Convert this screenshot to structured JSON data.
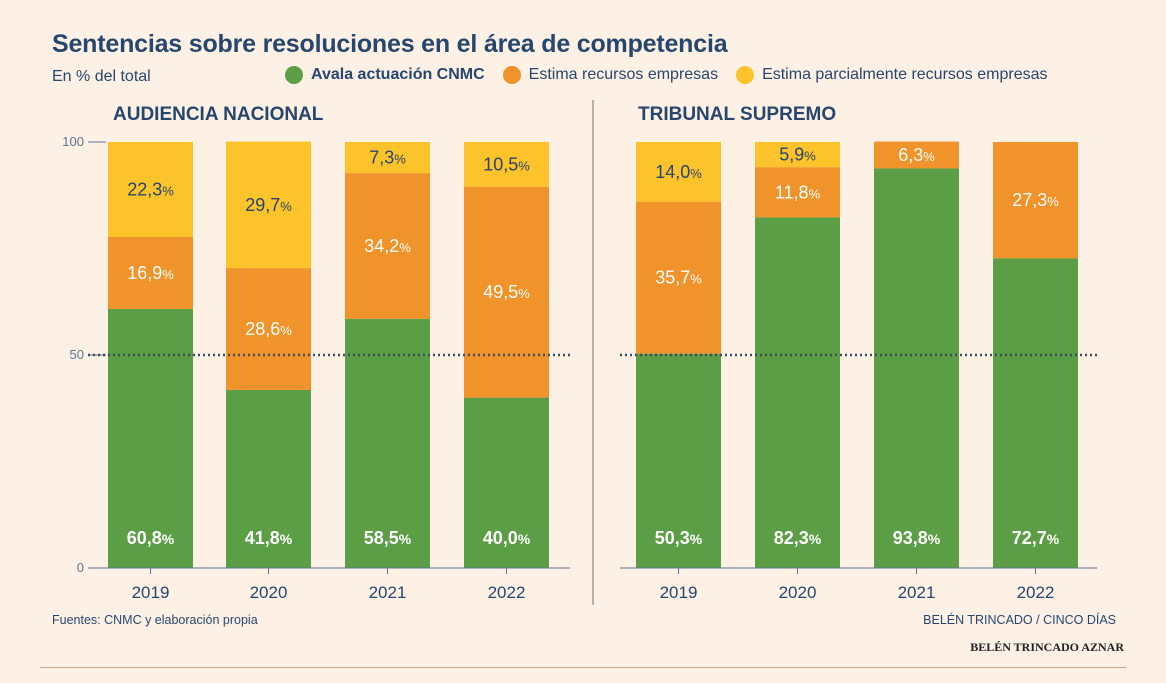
{
  "title": "Sentencias sobre resoluciones en el área de competencia",
  "subtitle": "En % del total",
  "legend": [
    {
      "label": "Avala actuación CNMC",
      "color": "#5c9e45"
    },
    {
      "label": "Estima recursos empresas",
      "color": "#f0932a"
    },
    {
      "label": "Estima parcialmente recursos empresas",
      "color": "#fcc32a"
    }
  ],
  "source": "Fuentes: CNMC y elaboración propia",
  "credit": "BELÉN TRINCADO / CINCO DÍAS",
  "byline": "BELÉN TRINCADO AZNAR",
  "colors": {
    "green": "#5c9e45",
    "orange": "#f0932a",
    "yellow": "#fcc32a",
    "text_dark": "#27466e",
    "text_light": "#ffffff"
  },
  "chart_data": [
    {
      "type": "bar",
      "stacked": true,
      "title": "AUDIENCIA NACIONAL",
      "categories": [
        "2019",
        "2020",
        "2021",
        "2022"
      ],
      "yticks": [
        "0",
        "50",
        "100"
      ],
      "ylim": [
        0,
        100
      ],
      "reference_line": 50,
      "series": [
        {
          "name": "Avala actuación CNMC",
          "values": [
            60.8,
            41.8,
            58.5,
            40.0
          ],
          "labels": [
            "60,8",
            "41,8",
            "58,5",
            "40,0"
          ]
        },
        {
          "name": "Estima recursos empresas",
          "values": [
            16.9,
            28.6,
            34.2,
            49.5
          ],
          "labels": [
            "16,9",
            "28,6",
            "34,2",
            "49,5"
          ]
        },
        {
          "name": "Estima parcialmente recursos empresas",
          "values": [
            22.3,
            29.7,
            7.3,
            10.5
          ],
          "labels": [
            "22,3",
            "29,7",
            "7,3",
            "10,5"
          ]
        }
      ]
    },
    {
      "type": "bar",
      "stacked": true,
      "title": "TRIBUNAL SUPREMO",
      "categories": [
        "2019",
        "2020",
        "2021",
        "2022"
      ],
      "ylim": [
        0,
        100
      ],
      "reference_line": 50,
      "series": [
        {
          "name": "Avala actuación CNMC",
          "values": [
            50.3,
            82.3,
            93.8,
            72.7
          ],
          "labels": [
            "50,3",
            "82,3",
            "93,8",
            "72,7"
          ]
        },
        {
          "name": "Estima recursos empresas",
          "values": [
            35.7,
            11.8,
            6.3,
            27.3
          ],
          "labels": [
            "35,7",
            "11,8",
            "6,3",
            "27,3"
          ]
        },
        {
          "name": "Estima parcialmente recursos empresas",
          "values": [
            14.0,
            5.9,
            0,
            0
          ],
          "labels": [
            "14,0",
            "5,9",
            "",
            ""
          ]
        }
      ]
    }
  ]
}
